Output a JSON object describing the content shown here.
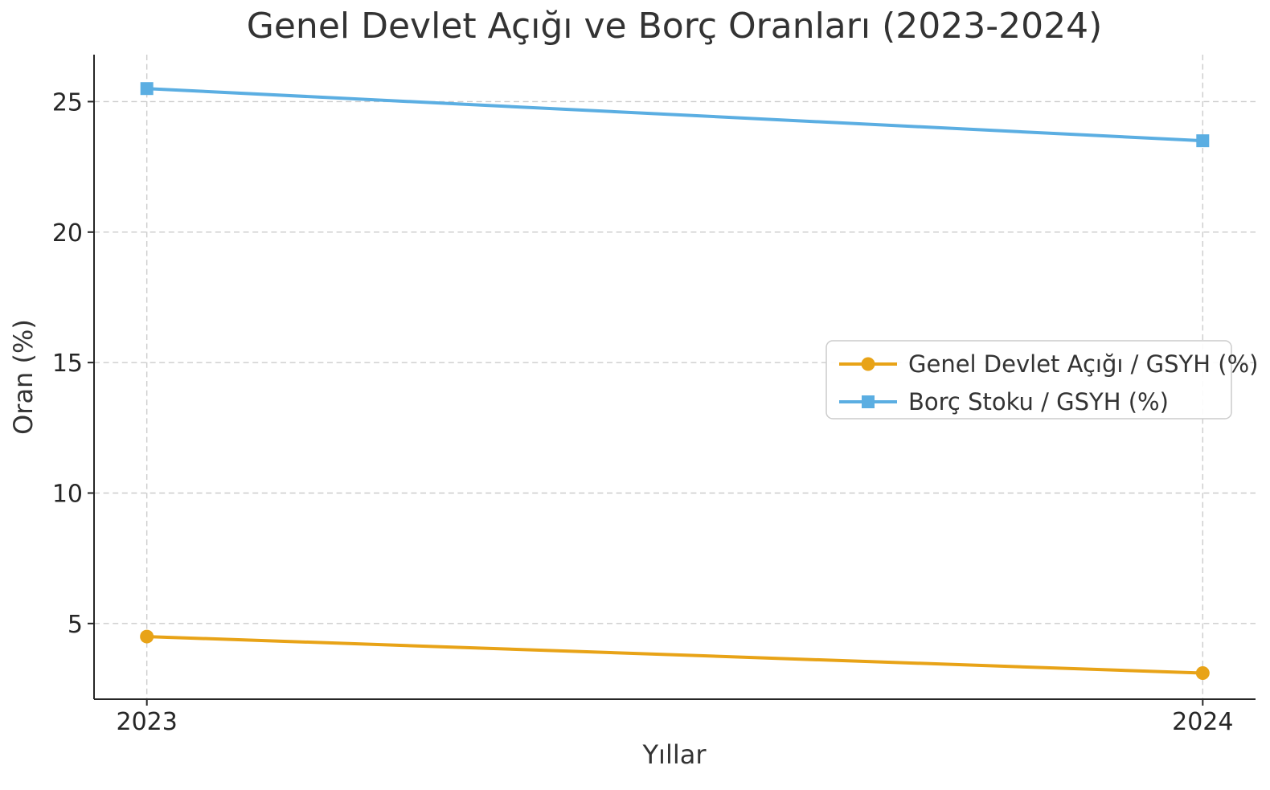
{
  "chart_data": {
    "type": "line",
    "title": "Genel Devlet Açığı ve Borç Oranları (2023-2024)",
    "xlabel": "Yıllar",
    "ylabel": "Oran (%)",
    "x": [
      2023,
      2024
    ],
    "x_tick_labels": [
      "2023",
      "2024"
    ],
    "y_ticks": [
      5,
      10,
      15,
      20,
      25
    ],
    "y_tick_labels": [
      "5",
      "10",
      "15",
      "20",
      "25"
    ],
    "xlim": [
      2022.95,
      2024.05
    ],
    "ylim": [
      2.1,
      26.8
    ],
    "grid": true,
    "grid_style": "dashed",
    "legend_position": "center-right",
    "series": [
      {
        "name": "Genel Devlet Açığı / GSYH (%)",
        "values": [
          4.5,
          3.1
        ],
        "color": "#E8A317",
        "marker": "circle"
      },
      {
        "name": "Borç Stoku / GSYH (%)",
        "values": [
          25.5,
          23.5
        ],
        "color": "#5BAEE2",
        "marker": "square"
      }
    ],
    "colors": {
      "background": "#FFFFFF",
      "axis": "#262626",
      "text": "#333333",
      "grid": "#CCCCCC",
      "legend_border": "#CCCCCC",
      "legend_background": "#FFFFFF"
    }
  }
}
